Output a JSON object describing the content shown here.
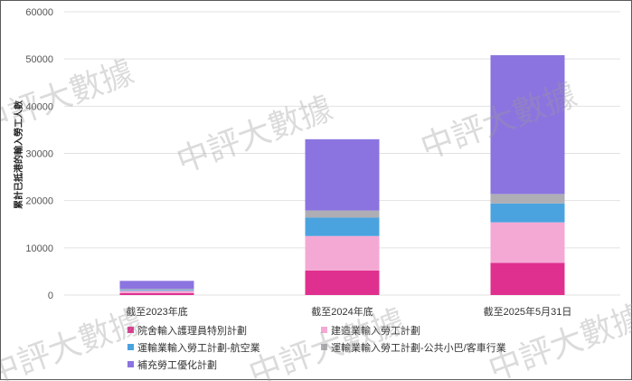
{
  "watermark": "中評大數據",
  "chart_data": {
    "type": "bar",
    "stacked": true,
    "categories": [
      "截至2023年底",
      "截至2024年底",
      "截至2025年5月31日"
    ],
    "ylabel": "累計已抵港的輸入勞工人數",
    "ylim": [
      0,
      60000
    ],
    "yticks": [
      0,
      10000,
      20000,
      30000,
      40000,
      50000,
      60000
    ],
    "grid": true,
    "legend_position": "bottom",
    "series": [
      {
        "name": "院舍輸入護理員特別計劃",
        "color": "#e0308f",
        "values": [
          400,
          5200,
          6800
        ]
      },
      {
        "name": "建造業輸入勞工計劃",
        "color": "#f4a9d4",
        "values": [
          500,
          7300,
          8600
        ]
      },
      {
        "name": "運輸業輸入勞工計劃-航空業",
        "color": "#4aa3df",
        "values": [
          200,
          3900,
          4000
        ]
      },
      {
        "name": "運輸業輸入勞工計劃-公共小巴/客車行業",
        "color": "#aeaeb4",
        "values": [
          200,
          1500,
          2000
        ]
      },
      {
        "name": "補充勞工優化計劃",
        "color": "#8b74e0",
        "values": [
          1700,
          15100,
          29400
        ]
      }
    ]
  }
}
